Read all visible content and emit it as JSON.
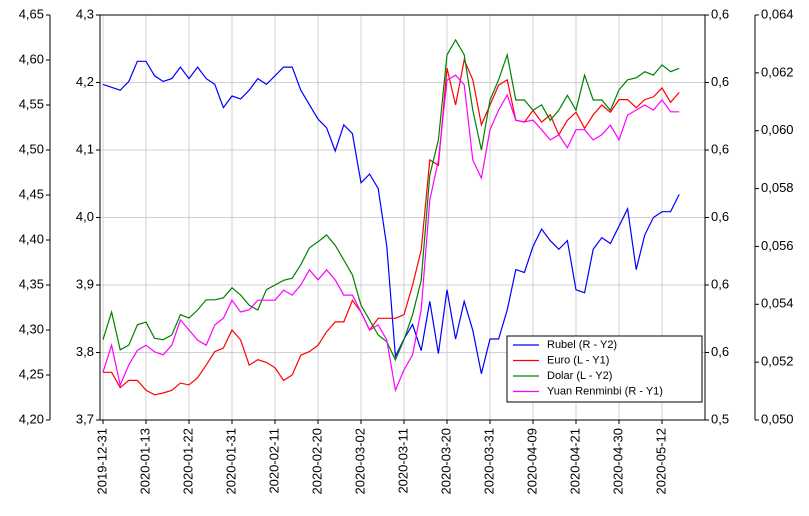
{
  "chart_data": {
    "type": "line",
    "categories": [
      "2019-12-31",
      null,
      null,
      null,
      null,
      "2020-01-13",
      null,
      null,
      null,
      null,
      "2020-01-22",
      null,
      null,
      null,
      null,
      "2020-01-31",
      null,
      null,
      null,
      null,
      "2020-02-11",
      null,
      null,
      null,
      null,
      "2020-02-20",
      null,
      null,
      null,
      null,
      "2020-03-02",
      null,
      null,
      null,
      null,
      "2020-03-11",
      null,
      null,
      null,
      null,
      "2020-03-20",
      null,
      null,
      null,
      null,
      "2020-03-31",
      null,
      null,
      null,
      null,
      "2020-04-09",
      null,
      null,
      null,
      null,
      "2020-04-21",
      null,
      null,
      null,
      null,
      "2020-04-30",
      null,
      null,
      null,
      null,
      "2020-05-12",
      null,
      null
    ],
    "ylim": [
      4.2,
      4.65
    ],
    "yticks": [
      {
        "value": 4.2,
        "label": "4,20"
      },
      {
        "value": 4.25,
        "label": "4,25"
      },
      {
        "value": 4.3,
        "label": "4,30"
      },
      {
        "value": 4.35,
        "label": "4,35"
      },
      {
        "value": 4.4,
        "label": "4,40"
      },
      {
        "value": 4.45,
        "label": "4,45"
      },
      {
        "value": 4.5,
        "label": "4,50"
      },
      {
        "value": 4.55,
        "label": "4,55"
      },
      {
        "value": 4.6,
        "label": "4,60"
      },
      {
        "value": 4.65,
        "label": "4,65"
      }
    ],
    "y2lim": [
      3.7,
      4.3
    ],
    "y2ticks": [
      {
        "value": 3.7,
        "label": "3,7"
      },
      {
        "value": 3.8,
        "label": "3,8"
      },
      {
        "value": 3.9,
        "label": "3,9"
      },
      {
        "value": 4.0,
        "label": "4,0"
      },
      {
        "value": 4.1,
        "label": "4,1"
      },
      {
        "value": 4.2,
        "label": "4,2"
      },
      {
        "value": 4.3,
        "label": "4,3"
      }
    ],
    "y3lim": [
      0.54,
      0.612
    ],
    "y3ticks": [
      {
        "value": 0.54,
        "label": "0,5"
      },
      {
        "value": 0.552,
        "label": "0,6"
      },
      {
        "value": 0.564,
        "label": "0,6"
      },
      {
        "value": 0.576,
        "label": "0,6"
      },
      {
        "value": 0.588,
        "label": "0,6"
      },
      {
        "value": 0.6,
        "label": "0,6"
      },
      {
        "value": 0.612,
        "label": "0,6"
      }
    ],
    "y4lim": [
      0.05,
      0.064
    ],
    "y4ticks": [
      {
        "value": 0.05,
        "label": "0,050"
      },
      {
        "value": 0.052,
        "label": "0,052"
      },
      {
        "value": 0.054,
        "label": "0,054"
      },
      {
        "value": 0.056,
        "label": "0,056"
      },
      {
        "value": 0.058,
        "label": "0,058"
      },
      {
        "value": 0.06,
        "label": "0,060"
      },
      {
        "value": 0.062,
        "label": "0,062"
      },
      {
        "value": 0.064,
        "label": "0,064"
      }
    ],
    "grid": true,
    "legend": "lower right",
    "series": [
      {
        "name": "Rubel (R - Y2)",
        "color": "#0000ff",
        "axis": "y4",
        "values": [
          0.0616,
          0.0615,
          0.0614,
          0.0617,
          0.0624,
          0.0624,
          0.0619,
          0.0617,
          0.0618,
          0.0622,
          0.0618,
          0.0622,
          0.0618,
          0.0616,
          0.0608,
          0.0612,
          0.0611,
          0.0614,
          0.0618,
          0.0616,
          0.0619,
          0.0622,
          0.0622,
          0.0614,
          0.0609,
          0.0604,
          0.0601,
          0.0593,
          0.0602,
          0.0599,
          0.0582,
          0.0585,
          0.058,
          0.056,
          0.0522,
          0.0528,
          0.0533,
          0.0524,
          0.0541,
          0.0523,
          0.0545,
          0.0528,
          0.0541,
          0.0531,
          0.0516,
          0.0528,
          0.0528,
          0.0538,
          0.0552,
          0.0551,
          0.056,
          0.0566,
          0.0562,
          0.0559,
          0.0562,
          0.0545,
          0.0544,
          0.0559,
          0.0563,
          0.0561,
          0.0567,
          0.0573,
          0.0552,
          0.0564,
          0.057,
          0.0572,
          0.0572,
          0.0578
        ]
      },
      {
        "name": "Euro (L - Y1)",
        "color": "#ff0000",
        "axis": "y",
        "values": [
          4.253,
          4.253,
          4.236,
          4.244,
          4.244,
          4.233,
          4.228,
          4.23,
          4.233,
          4.241,
          4.239,
          4.247,
          4.261,
          4.276,
          4.28,
          4.3,
          4.289,
          4.261,
          4.267,
          4.264,
          4.258,
          4.244,
          4.25,
          4.272,
          4.276,
          4.283,
          4.298,
          4.309,
          4.309,
          4.333,
          4.32,
          4.3,
          4.313,
          4.313,
          4.313,
          4.317,
          4.35,
          4.389,
          4.489,
          4.483,
          4.591,
          4.55,
          4.6,
          4.578,
          4.528,
          4.55,
          4.572,
          4.578,
          4.533,
          4.531,
          4.544,
          4.531,
          4.539,
          4.517,
          4.533,
          4.542,
          4.524,
          4.539,
          4.55,
          4.542,
          4.556,
          4.556,
          4.547,
          4.556,
          4.559,
          4.569,
          4.553,
          4.564
        ]
      },
      {
        "name": "Dolar (L - Y2)",
        "color": "#008000",
        "axis": "y2",
        "values": [
          3.819,
          3.86,
          3.804,
          3.811,
          3.841,
          3.845,
          3.821,
          3.819,
          3.826,
          3.856,
          3.851,
          3.863,
          3.878,
          3.878,
          3.881,
          3.896,
          3.885,
          3.87,
          3.863,
          3.893,
          3.9,
          3.907,
          3.91,
          3.93,
          3.955,
          3.964,
          3.974,
          3.959,
          3.937,
          3.915,
          3.87,
          3.848,
          3.826,
          3.816,
          3.789,
          3.819,
          3.856,
          3.907,
          4.063,
          4.115,
          4.241,
          4.263,
          4.241,
          4.159,
          4.1,
          4.174,
          4.204,
          4.241,
          4.174,
          4.174,
          4.159,
          4.167,
          4.144,
          4.159,
          4.181,
          4.159,
          4.211,
          4.174,
          4.174,
          4.159,
          4.189,
          4.204,
          4.207,
          4.216,
          4.211,
          4.226,
          4.216,
          4.221
        ]
      },
      {
        "name": "Yuan Renminbi (R - Y1)",
        "color": "#ff00ff",
        "axis": "y3",
        "values": [
          0.5485,
          0.5533,
          0.5462,
          0.5498,
          0.5524,
          0.5533,
          0.5521,
          0.5516,
          0.5533,
          0.5578,
          0.556,
          0.5542,
          0.5533,
          0.5569,
          0.5581,
          0.5613,
          0.5592,
          0.5596,
          0.5613,
          0.5613,
          0.5613,
          0.5631,
          0.5622,
          0.564,
          0.5667,
          0.5649,
          0.5667,
          0.5649,
          0.5622,
          0.5622,
          0.5592,
          0.556,
          0.5569,
          0.5542,
          0.5453,
          0.5489,
          0.5516,
          0.5596,
          0.5791,
          0.5862,
          0.6004,
          0.6013,
          0.5996,
          0.5862,
          0.583,
          0.5916,
          0.5951,
          0.5978,
          0.5933,
          0.593,
          0.5933,
          0.5916,
          0.5898,
          0.5907,
          0.5884,
          0.5916,
          0.5916,
          0.5898,
          0.5907,
          0.5924,
          0.5898,
          0.5942,
          0.5951,
          0.596,
          0.5951,
          0.5969,
          0.5948,
          0.5948
        ]
      }
    ]
  }
}
